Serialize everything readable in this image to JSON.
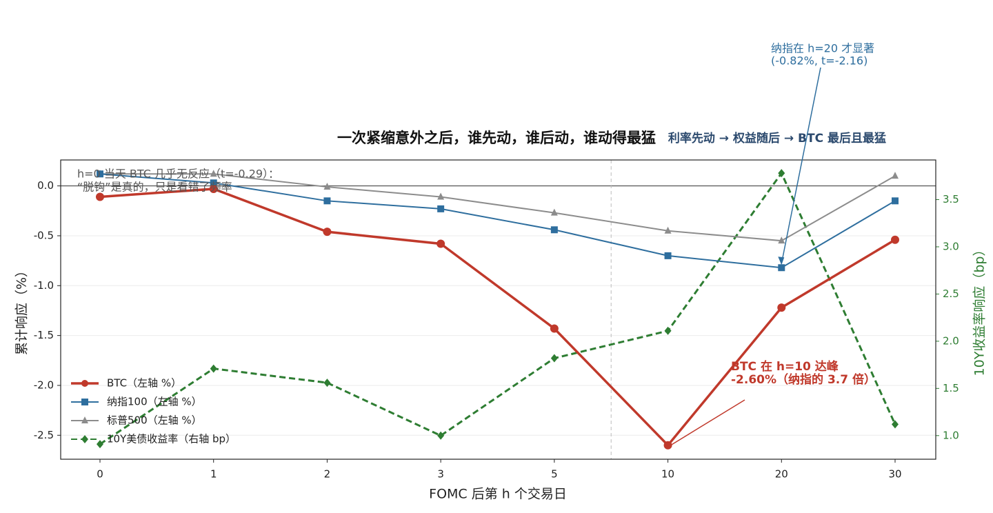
{
  "chart_data": {
    "type": "line",
    "title": "一次紧缩意外之后，谁先动，谁后动，谁动得最猛",
    "subtitle": "利率先动 → 权益随后 → BTC 最后且最猛",
    "x_label": "FOMC 后第 h 个交易日",
    "y_label": "累计响应（%）",
    "y2_label": "10Y收益率响应（bp）",
    "categories": [
      "0",
      "1",
      "2",
      "3",
      "5",
      "10",
      "20",
      "30"
    ],
    "ylim": [
      -2.74,
      0.26
    ],
    "yticks": [
      {
        "value": -2.5,
        "label": "-2.5"
      },
      {
        "value": -2,
        "label": "-2.0"
      },
      {
        "value": -1.5,
        "label": "-1.5"
      },
      {
        "value": -1,
        "label": "-1.0"
      },
      {
        "value": -0.5,
        "label": "-0.5"
      },
      {
        "value": 0,
        "label": "0.0"
      }
    ],
    "y2lim": [
      0.75,
      3.92
    ],
    "y2ticks": [
      {
        "value": 1,
        "label": "1.0"
      },
      1.5,
      {
        "value": 2,
        "label": "2.0"
      },
      2.5,
      {
        "value": 3,
        "label": "3.0"
      },
      3.5
    ],
    "grid": true,
    "legend": "lower left",
    "series": [
      {
        "name": "BTC（左轴 %）",
        "color": "#c0392b",
        "marker": "circle",
        "values": [
          -0.11,
          -0.03,
          -0.46,
          -0.58,
          -1.43,
          -2.6,
          -1.22,
          -0.54
        ]
      },
      {
        "name": "纳指100（左轴 %）",
        "color": "#2e6e9e",
        "marker": "square",
        "values": [
          0.12,
          0.03,
          -0.15,
          -0.23,
          -0.44,
          -0.7,
          -0.82,
          -0.15
        ]
      },
      {
        "name": "标普500（左轴 %）",
        "color": "#8c8c8c",
        "marker": "triangle",
        "values": [
          0.12,
          0.12,
          -0.01,
          -0.11,
          -0.27,
          -0.45,
          -0.55,
          0.1
        ]
      },
      {
        "name": "10Y美债收益率（右轴 bp）",
        "color": "#2e7d32",
        "marker": "diamond",
        "axis": "y2",
        "dashed": true,
        "values": [
          0.91,
          1.71,
          1.56,
          1.0,
          1.82,
          2.11,
          3.78,
          1.12
        ]
      }
    ],
    "annotations": [
      {
        "lines": [
          "h=0 当天 BTC 几乎无反应（t=-0.29）：",
          "“脱钩”是真的，只是看错了频率"
        ]
      },
      {
        "lines": [
          "纳指在 h=20 才显著",
          "(-0.82%, t=-2.16)"
        ]
      },
      {
        "lines": [
          "BTC 在 h=10 达峰",
          "-2.60%（纳指的 3.7 倍）"
        ]
      }
    ]
  }
}
